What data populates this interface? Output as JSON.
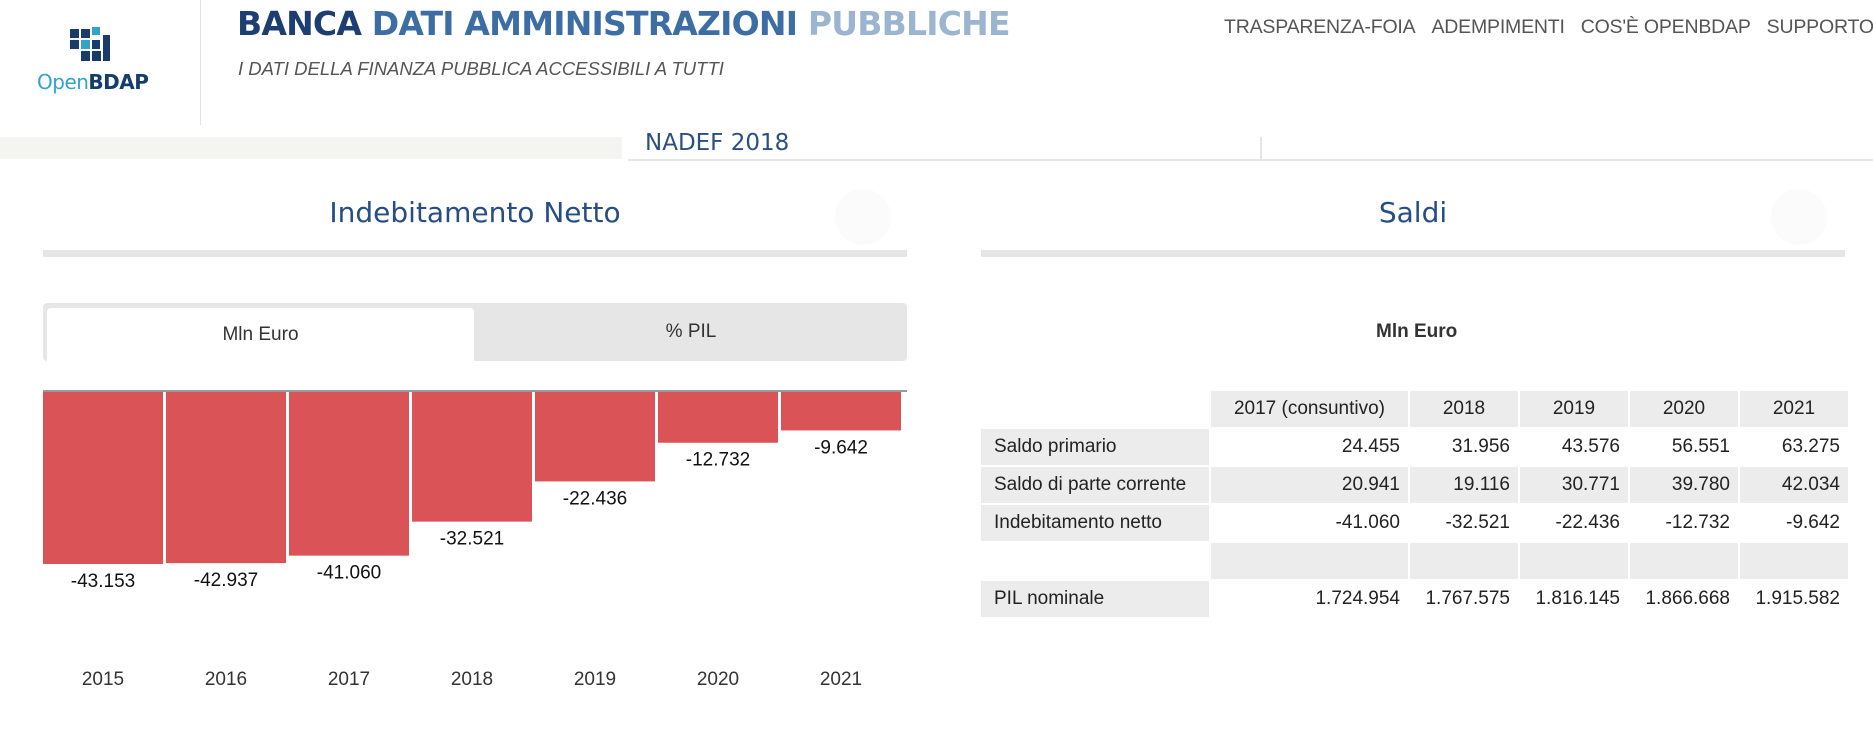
{
  "header": {
    "logo_text_open": "Open",
    "logo_text_bdap": "BDAP",
    "title_part1": "BANCA",
    "title_part2": "DATI AMMINISTRAZIONI",
    "title_part3": "PUBBLICHE",
    "subtitle": "I DATI DELLA FINANZA PUBBLICA ACCESSIBILI A TUTTI",
    "nav": [
      "TRASPARENZA-FOIA",
      "ADEMPIMENTI",
      "COS'È OPENBDAP",
      "SUPPORTO"
    ]
  },
  "section_label": "NADEF 2018",
  "left_panel": {
    "title": "Indebitamento Netto",
    "tabs": [
      "Mln Euro",
      "% PIL"
    ],
    "active_tab": "Mln Euro"
  },
  "chart_data": {
    "type": "bar",
    "categories": [
      "2015",
      "2016",
      "2017",
      "2018",
      "2019",
      "2020",
      "2021"
    ],
    "values": [
      -43153,
      -42937,
      -41060,
      -32521,
      -22436,
      -12732,
      -9642
    ],
    "data_labels": [
      "-43.153",
      "-42.937",
      "-41.060",
      "-32.521",
      "-22.436",
      "-12.732",
      "-9.642"
    ],
    "bar_color": "#d95357",
    "ylim": [
      -43153,
      0
    ],
    "grid": false
  },
  "right_panel": {
    "title": "Saldi",
    "unit_label": "Mln Euro",
    "table": {
      "columns": [
        "2017 (consuntivo)",
        "2018",
        "2019",
        "2020",
        "2021"
      ],
      "rows": [
        {
          "label": "Saldo primario",
          "values": [
            "24.455",
            "31.956",
            "43.576",
            "56.551",
            "63.275"
          ]
        },
        {
          "label": "Saldo di parte corrente",
          "values": [
            "20.941",
            "19.116",
            "30.771",
            "39.780",
            "42.034"
          ]
        },
        {
          "label": "Indebitamento netto",
          "values": [
            "-41.060",
            "-32.521",
            "-22.436",
            "-12.732",
            "-9.642"
          ]
        },
        {
          "label": "",
          "values": [
            "",
            "",
            "",
            "",
            ""
          ]
        },
        {
          "label": "PIL nominale",
          "values": [
            "1.724.954",
            "1.767.575",
            "1.816.145",
            "1.866.668",
            "1.915.582"
          ]
        }
      ]
    }
  },
  "colors": {
    "brand_dark": "#1d3e70",
    "brand_mid": "#3d6ea3",
    "brand_light": "#9bb5d1",
    "logo_cyan": "#34a3c7"
  }
}
